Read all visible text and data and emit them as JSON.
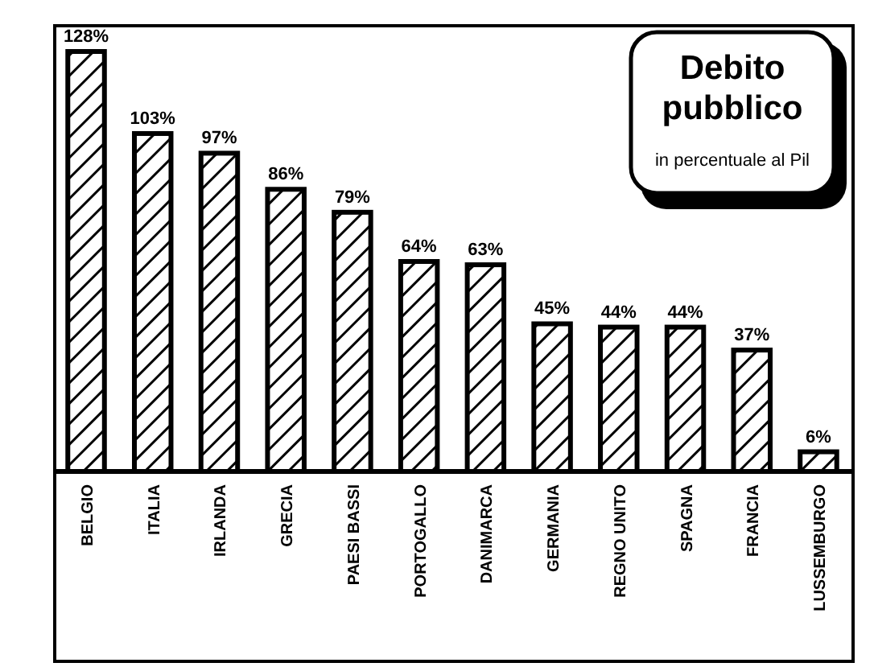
{
  "chart_data": {
    "type": "bar",
    "title": "Debito pubblico",
    "subtitle": "in percentuale al Pil",
    "categories": [
      "BELGIO",
      "ITALIA",
      "IRLANDA",
      "GRECIA",
      "PAESI BASSI",
      "PORTOGALLO",
      "DANIMARCA",
      "GERMANIA",
      "REGNO UNITO",
      "SPAGNA",
      "FRANCIA",
      "LUSSEMBURGO"
    ],
    "values": [
      128,
      103,
      97,
      86,
      79,
      64,
      63,
      45,
      44,
      44,
      37,
      6
    ],
    "value_labels": [
      "128%",
      "103%",
      "97%",
      "86%",
      "79%",
      "64%",
      "63%",
      "45%",
      "44%",
      "44%",
      "37%",
      "6%"
    ],
    "color": "#000000"
  }
}
